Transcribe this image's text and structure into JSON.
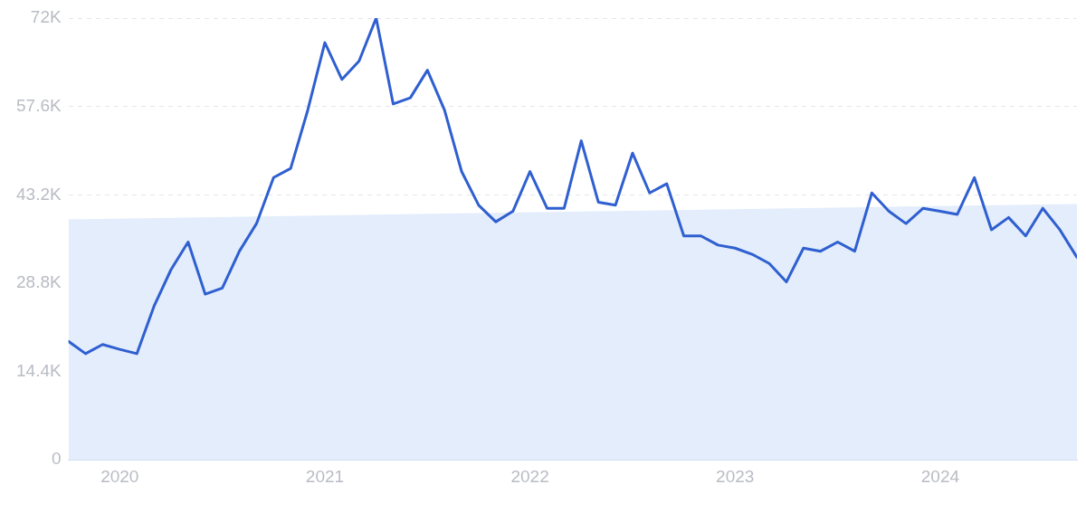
{
  "chart_data": {
    "type": "line",
    "xlim": [
      "2019-10",
      "2024-09"
    ],
    "xticks": [
      {
        "value": "2020-01",
        "label": "2020"
      },
      {
        "value": "2021-01",
        "label": "2021"
      },
      {
        "value": "2022-01",
        "label": "2022"
      },
      {
        "value": "2023-01",
        "label": "2023"
      },
      {
        "value": "2024-01",
        "label": "2024"
      }
    ],
    "ylim": [
      0,
      72000
    ],
    "yticks": [
      {
        "value": 0,
        "label": "0"
      },
      {
        "value": 14400,
        "label": "14.4K"
      },
      {
        "value": 28800,
        "label": "28.8K"
      },
      {
        "value": 43200,
        "label": "43.2K"
      },
      {
        "value": 57600,
        "label": "57.6K"
      },
      {
        "value": 72000,
        "label": "72K"
      }
    ],
    "grid": "y",
    "legend": false,
    "marker": "none",
    "line_style": "solid",
    "series": [
      {
        "type": "area",
        "color": "#e3edfb",
        "x": [
          "2019-10",
          "2024-09"
        ],
        "values": [
          39200,
          41700
        ]
      },
      {
        "type": "line",
        "color": "#2f5fd0",
        "x": [
          "2019-10",
          "2019-11",
          "2019-12",
          "2020-01",
          "2020-02",
          "2020-03",
          "2020-04",
          "2020-05",
          "2020-06",
          "2020-07",
          "2020-08",
          "2020-09",
          "2020-10",
          "2020-11",
          "2020-12",
          "2021-01",
          "2021-02",
          "2021-03",
          "2021-04",
          "2021-05",
          "2021-06",
          "2021-07",
          "2021-08",
          "2021-09",
          "2021-10",
          "2021-11",
          "2021-12",
          "2022-01",
          "2022-02",
          "2022-03",
          "2022-04",
          "2022-05",
          "2022-06",
          "2022-07",
          "2022-08",
          "2022-09",
          "2022-10",
          "2022-11",
          "2022-12",
          "2023-01",
          "2023-02",
          "2023-03",
          "2023-04",
          "2023-05",
          "2023-06",
          "2023-07",
          "2023-08",
          "2023-09",
          "2023-10",
          "2023-11",
          "2023-12",
          "2024-01",
          "2024-02",
          "2024-03",
          "2024-04",
          "2024-05",
          "2024-06",
          "2024-07",
          "2024-08",
          "2024-09"
        ],
        "values": [
          19300,
          17300,
          18800,
          18000,
          17300,
          25000,
          31000,
          35500,
          27000,
          28000,
          34000,
          38500,
          46000,
          47500,
          57000,
          68000,
          62000,
          65000,
          72000,
          58000,
          59000,
          63500,
          57000,
          47000,
          41500,
          38800,
          40500,
          47000,
          41000,
          41000,
          52000,
          42000,
          41500,
          50000,
          43500,
          45000,
          36500,
          36500,
          35000,
          34500,
          33500,
          32000,
          29000,
          34500,
          34000,
          35500,
          34000,
          43500,
          40500,
          38500,
          41000,
          40500,
          40000,
          46000,
          37500,
          39500,
          36500,
          41000,
          37500,
          33000
        ]
      }
    ]
  }
}
